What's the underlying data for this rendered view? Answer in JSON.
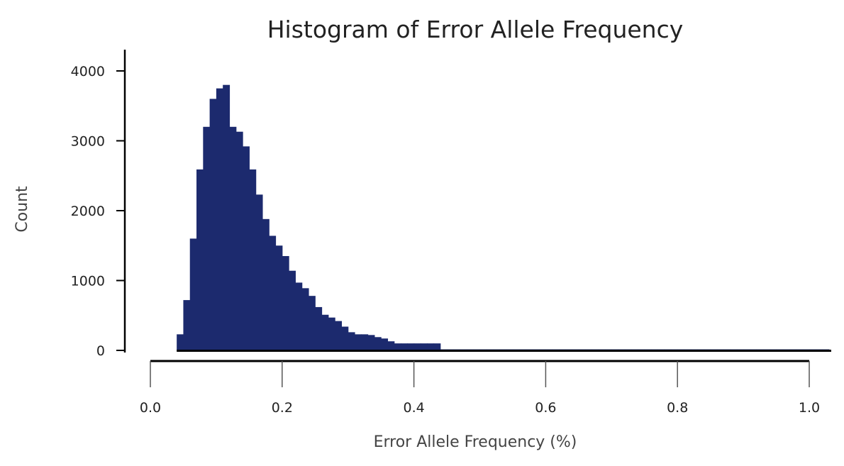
{
  "chart_data": {
    "type": "bar",
    "title": "Histogram of Error Allele Frequency",
    "xlabel": "Error Allele Frequency (%)",
    "ylabel": "Count",
    "xlim": [
      0.0,
      1.03
    ],
    "ylim": [
      0,
      4300
    ],
    "grid": false,
    "bar_color": "#1c2a6e",
    "bin_width": 0.01,
    "bin_start": 0.04,
    "values": [
      230,
      720,
      1600,
      2590,
      3200,
      3600,
      3750,
      3800,
      3200,
      3130,
      2920,
      2590,
      2230,
      1880,
      1640,
      1500,
      1350,
      1140,
      970,
      890,
      780,
      620,
      510,
      470,
      420,
      340,
      260,
      230,
      230,
      220,
      190,
      170,
      130,
      100,
      100,
      100,
      100,
      100,
      100,
      100,
      15,
      15,
      15,
      15,
      15,
      15,
      15,
      15,
      15,
      15,
      15,
      15,
      15,
      15,
      15,
      15,
      15,
      15,
      15,
      15,
      15,
      15,
      15,
      15,
      15,
      15,
      15,
      15,
      15,
      15,
      15,
      15,
      15,
      15,
      15,
      15,
      15,
      15,
      15,
      15,
      15,
      15,
      15,
      15,
      15,
      15,
      15,
      15,
      15,
      15,
      15,
      15,
      15,
      15,
      15,
      15,
      15,
      15,
      15
    ],
    "x_ticks": [
      "0.0",
      "0.2",
      "0.4",
      "0.6",
      "0.8",
      "1.0"
    ],
    "y_ticks": [
      "0",
      "1000",
      "2000",
      "3000",
      "4000"
    ]
  }
}
